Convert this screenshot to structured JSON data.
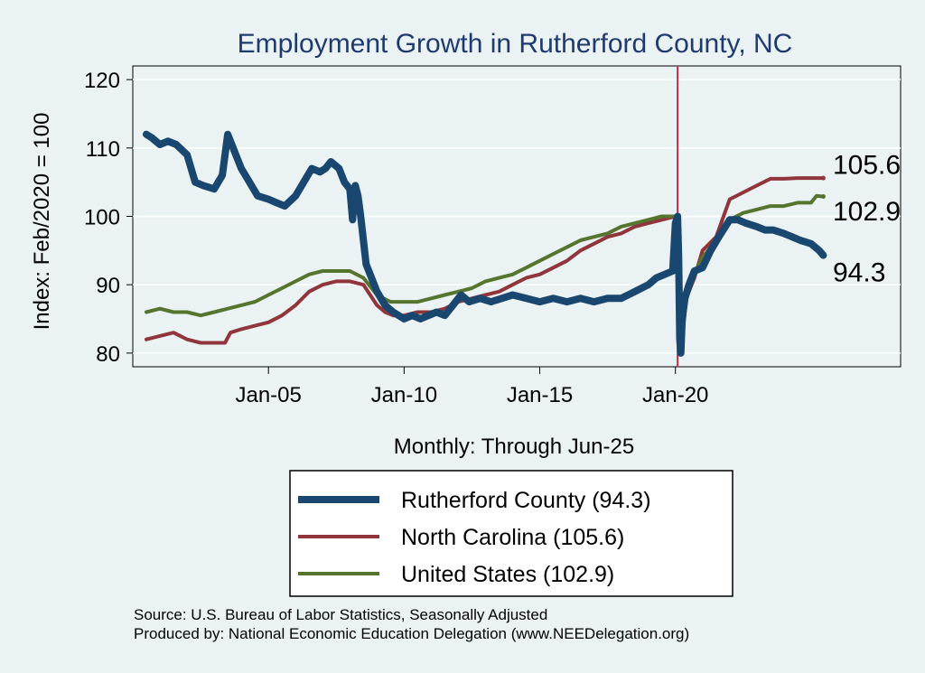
{
  "chart_data": {
    "type": "line",
    "title": "Employment Growth in Rutherford  County, NC",
    "ylabel": "Index: Feb/2020 = 100",
    "xlabel": "Monthly: Through Jun-25",
    "ylim": [
      78,
      122
    ],
    "xlim": [
      2000.0,
      2028.3
    ],
    "yticks": [
      80,
      90,
      100,
      110,
      120
    ],
    "xticks": [
      {
        "label": "Jan-05",
        "value": 2005.0
      },
      {
        "label": "Jan-10",
        "value": 2010.0
      },
      {
        "label": "Jan-15",
        "value": 2015.0
      },
      {
        "label": "Jan-20",
        "value": 2020.0
      }
    ],
    "reference_line": {
      "x": 2020.08,
      "color": "#c0304a"
    },
    "series": [
      {
        "name": "Rutherford  County",
        "legend": "Rutherford  County (94.3)",
        "end_label": "94.3",
        "color": "#1a476f",
        "width": 8,
        "x": [
          2000.5,
          2000.7,
          2001.0,
          2001.3,
          2001.6,
          2002.0,
          2002.3,
          2002.6,
          2003.0,
          2003.3,
          2003.5,
          2003.8,
          2004.0,
          2004.3,
          2004.6,
          2005.0,
          2005.3,
          2005.6,
          2006.0,
          2006.3,
          2006.6,
          2006.9,
          2007.1,
          2007.3,
          2007.6,
          2007.8,
          2008.0,
          2008.1,
          2008.2,
          2008.3,
          2008.4,
          2008.6,
          2008.8,
          2009.0,
          2009.3,
          2009.6,
          2010.0,
          2010.3,
          2010.6,
          2010.9,
          2011.2,
          2011.5,
          2011.8,
          2012.1,
          2012.4,
          2012.8,
          2013.2,
          2013.6,
          2014.0,
          2014.5,
          2015.0,
          2015.5,
          2016.0,
          2016.5,
          2017.0,
          2017.5,
          2018.0,
          2018.5,
          2019.0,
          2019.3,
          2019.6,
          2019.9,
          2020.0,
          2020.08,
          2020.12,
          2020.16,
          2020.2,
          2020.25,
          2020.35,
          2020.5,
          2020.7,
          2021.0,
          2021.3,
          2021.6,
          2022.0,
          2022.3,
          2022.6,
          2023.0,
          2023.3,
          2023.6,
          2024.0,
          2024.3,
          2024.6,
          2025.0,
          2025.3,
          2025.45
        ],
        "values": [
          112,
          111.5,
          110.5,
          111,
          110.5,
          109,
          105,
          104.5,
          104,
          106,
          112,
          109,
          107,
          105,
          103,
          102.5,
          102,
          101.5,
          103,
          105,
          107,
          106.5,
          107,
          108,
          107,
          105,
          104,
          99.5,
          104.5,
          103,
          100,
          93,
          91,
          89,
          87,
          86,
          85,
          85.5,
          85,
          85.5,
          86,
          85.5,
          87,
          88.5,
          87.5,
          88,
          87.5,
          88,
          88.5,
          88,
          87.5,
          88,
          87.5,
          88,
          87.5,
          88,
          88,
          89,
          90,
          91,
          91.5,
          92,
          99,
          100,
          94,
          82,
          80,
          85,
          88,
          90,
          92,
          92.5,
          95,
          97,
          99.5,
          99.5,
          99,
          98.5,
          98,
          98,
          97.5,
          97,
          96.5,
          96,
          95,
          94.3
        ]
      },
      {
        "name": "North Carolina",
        "legend": "North Carolina (105.6)",
        "end_label": "105.6",
        "color": "#90353b",
        "width": 4,
        "x": [
          2000.5,
          2001.0,
          2001.5,
          2002.0,
          2002.5,
          2003.0,
          2003.4,
          2003.6,
          2004.0,
          2004.5,
          2005.0,
          2005.5,
          2006.0,
          2006.5,
          2007.0,
          2007.5,
          2008.0,
          2008.5,
          2009.0,
          2009.3,
          2009.6,
          2010.0,
          2010.5,
          2011.0,
          2011.5,
          2012.0,
          2012.5,
          2013.0,
          2013.5,
          2014.0,
          2014.5,
          2015.0,
          2015.5,
          2016.0,
          2016.5,
          2017.0,
          2017.5,
          2018.0,
          2018.5,
          2019.0,
          2019.5,
          2020.0,
          2020.08,
          2020.16,
          2020.25,
          2020.4,
          2020.7,
          2021.0,
          2021.5,
          2022.0,
          2022.5,
          2023.0,
          2023.5,
          2024.0,
          2024.5,
          2025.0,
          2025.45
        ],
        "values": [
          82,
          82.5,
          83,
          82,
          81.5,
          81.5,
          81.5,
          83,
          83.5,
          84,
          84.5,
          85.5,
          87,
          89,
          90,
          90.5,
          90.5,
          90,
          87,
          86,
          85.5,
          85.5,
          86,
          86,
          86.5,
          87.5,
          88,
          88.5,
          89,
          90,
          91,
          91.5,
          92.5,
          93.5,
          95,
          96,
          97,
          97.5,
          98.5,
          99,
          99.5,
          100,
          99,
          88,
          82,
          88,
          91,
          95,
          97,
          102.5,
          103.5,
          104.5,
          105.5,
          105.5,
          105.6,
          105.6,
          105.6
        ]
      },
      {
        "name": "United States",
        "legend": "United States (102.9)",
        "end_label": "102.9",
        "color": "#55752f",
        "width": 4,
        "x": [
          2000.5,
          2001.0,
          2001.5,
          2002.0,
          2002.5,
          2003.0,
          2003.5,
          2004.0,
          2004.5,
          2005.0,
          2005.5,
          2006.0,
          2006.5,
          2007.0,
          2007.5,
          2008.0,
          2008.5,
          2009.0,
          2009.5,
          2010.0,
          2010.5,
          2011.0,
          2011.5,
          2012.0,
          2012.5,
          2013.0,
          2013.5,
          2014.0,
          2014.5,
          2015.0,
          2015.5,
          2016.0,
          2016.5,
          2017.0,
          2017.5,
          2018.0,
          2018.5,
          2019.0,
          2019.5,
          2020.0,
          2020.08,
          2020.16,
          2020.25,
          2020.4,
          2020.7,
          2021.0,
          2021.5,
          2022.0,
          2022.5,
          2023.0,
          2023.5,
          2024.0,
          2024.5,
          2025.0,
          2025.2,
          2025.45
        ],
        "values": [
          86,
          86.5,
          86,
          86,
          85.5,
          86,
          86.5,
          87,
          87.5,
          88.5,
          89.5,
          90.5,
          91.5,
          92,
          92,
          92,
          91,
          88.5,
          87.5,
          87.5,
          87.5,
          88,
          88.5,
          89,
          89.5,
          90.5,
          91,
          91.5,
          92.5,
          93.5,
          94.5,
          95.5,
          96.5,
          97,
          97.5,
          98.5,
          99,
          99.5,
          100,
          100,
          99.5,
          86,
          84,
          88,
          91.5,
          94,
          96.5,
          99.5,
          100.5,
          101,
          101.5,
          101.5,
          102,
          102,
          103,
          102.9
        ]
      }
    ]
  },
  "source_line1": "Source: U.S. Bureau of Labor Statistics, Seasonally Adjusted",
  "source_line2": "Produced by: National Economic Education Delegation (www.NEEDelegation.org)"
}
